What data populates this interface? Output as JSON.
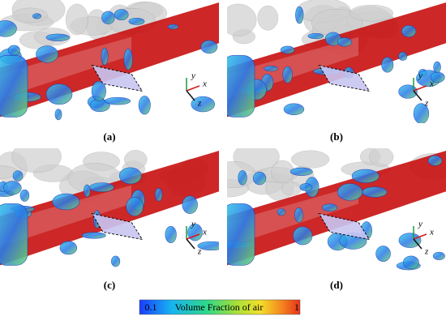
{
  "panels": [
    {
      "label": "(a)",
      "axes": {
        "x": "x",
        "y": "y",
        "z": "z"
      }
    },
    {
      "label": "(b)",
      "axes": {
        "x": "x",
        "y": "y",
        "z": "z"
      }
    },
    {
      "label": "(c)",
      "axes": {
        "x": "x",
        "y": "y",
        "z": "z"
      }
    },
    {
      "label": "(d)",
      "axes": {
        "x": "x",
        "y": "y",
        "z": "z"
      }
    }
  ],
  "colorbar": {
    "min_label": "0.1",
    "title": "Volume Fraction of air",
    "max_label": "1"
  }
}
